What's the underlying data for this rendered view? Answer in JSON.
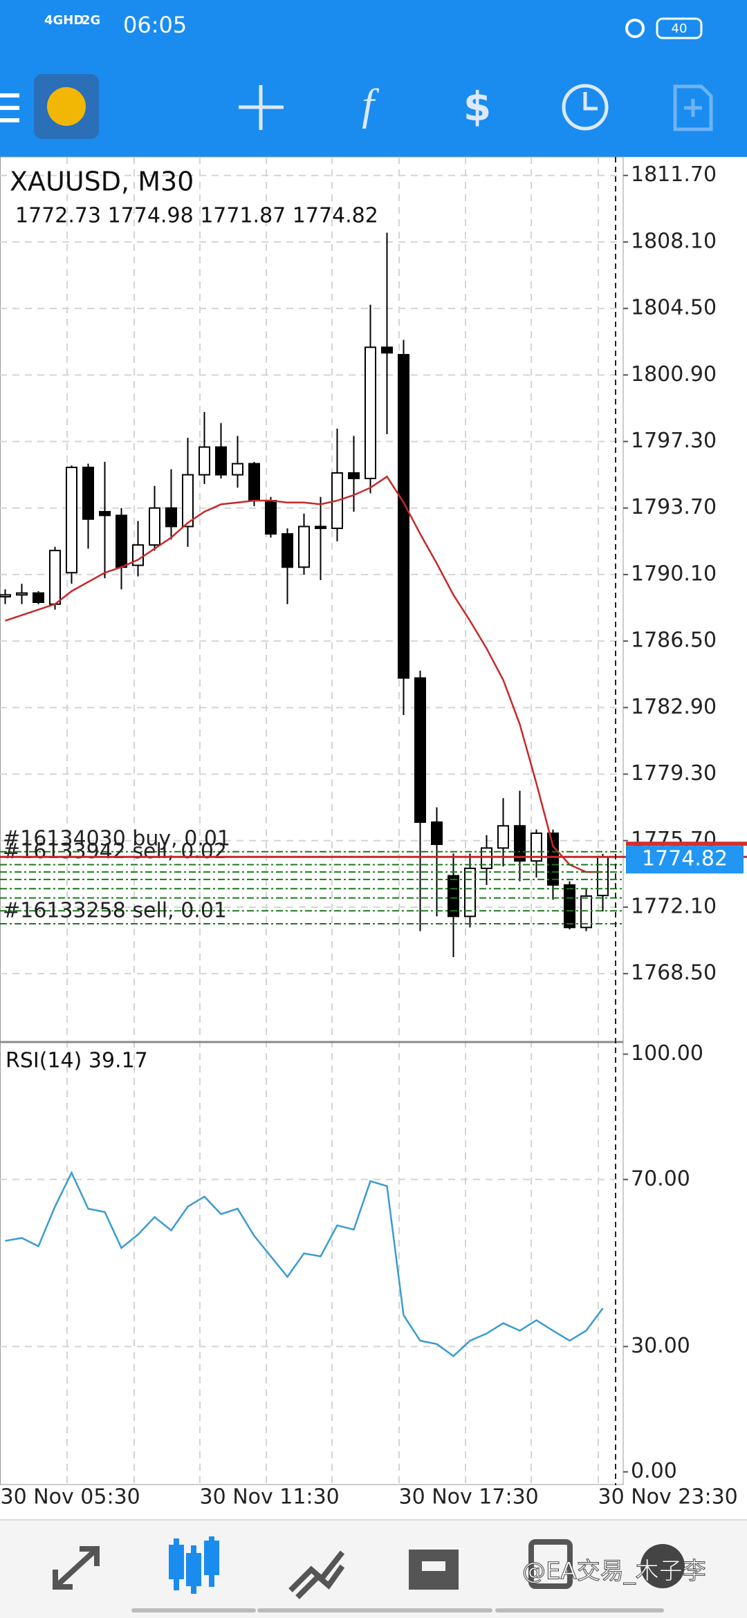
{
  "status_bar": {
    "network1": "4GHD",
    "network2": "2G",
    "time": "06:05",
    "battery": "40"
  },
  "watermark": "@EA交易_木子李",
  "chart_data": [
    {
      "type": "candlestick",
      "title": "XAUUSD, M30",
      "subtitle": "1772.73 1774.98 1771.87 1774.82",
      "categories": [
        "30 Nov 05:30",
        null,
        null,
        null,
        null,
        null,
        null,
        null,
        null,
        null,
        null,
        null,
        "30 Nov 11:30",
        null,
        null,
        null,
        null,
        null,
        null,
        null,
        null,
        null,
        null,
        null,
        "30 Nov 17:30",
        null,
        null,
        null,
        null,
        null,
        null,
        null,
        null,
        null,
        null,
        null,
        "30 Nov 23:30"
      ],
      "open": [
        1788.9,
        1789.0,
        1789.1,
        1788.5,
        1790.2,
        1795.9,
        1793.5,
        1793.3,
        1790.6,
        1791.7,
        1793.7,
        1792.7,
        1795.5,
        1797.0,
        1795.5,
        1796.1,
        1794.1,
        1792.3,
        1790.5,
        1792.7,
        1792.6,
        1795.6,
        1795.3,
        1802.4,
        1802.0,
        1784.5,
        1776.7,
        1773.8,
        1771.6,
        1774.2,
        1775.3,
        1776.5,
        1774.6,
        1776.1,
        1773.3,
        1771.0,
        1772.73
      ],
      "high": [
        1789.3,
        1789.6,
        1789.2,
        1791.6,
        1796.0,
        1796.1,
        1796.2,
        1793.7,
        1793.0,
        1794.9,
        1795.8,
        1797.5,
        1798.9,
        1798.3,
        1797.6,
        1796.2,
        1794.3,
        1792.6,
        1793.4,
        1794.3,
        1798.0,
        1797.6,
        1804.7,
        1808.6,
        1802.8,
        1784.9,
        1777.5,
        1775.0,
        1775.0,
        1776.0,
        1778.0,
        1778.4,
        1776.3,
        1776.3,
        1773.5,
        1773.1,
        1774.98
      ],
      "low": [
        1788.5,
        1788.5,
        1788.5,
        1788.2,
        1789.6,
        1791.5,
        1789.9,
        1789.3,
        1790.0,
        1791.4,
        1792.0,
        1791.6,
        1795.0,
        1795.3,
        1794.8,
        1793.8,
        1792.1,
        1788.5,
        1790.1,
        1789.8,
        1791.9,
        1793.5,
        1794.5,
        1797.7,
        1782.5,
        1770.8,
        1771.6,
        1769.4,
        1771.0,
        1773.3,
        1774.3,
        1773.5,
        1773.7,
        1772.5,
        1770.9,
        1770.8,
        1771.87
      ],
      "close": [
        1789.0,
        1789.1,
        1788.6,
        1791.4,
        1795.9,
        1793.1,
        1793.3,
        1790.5,
        1791.7,
        1793.7,
        1792.7,
        1795.5,
        1797.0,
        1795.5,
        1796.1,
        1794.1,
        1792.3,
        1790.5,
        1792.7,
        1792.6,
        1795.6,
        1795.3,
        1802.4,
        1802.1,
        1784.5,
        1776.7,
        1775.5,
        1771.6,
        1774.2,
        1775.3,
        1776.5,
        1774.6,
        1776.1,
        1773.3,
        1771.0,
        1772.7,
        1774.82
      ],
      "series": [
        {
          "color": "#c62828",
          "values": [
            1787.6,
            1787.9,
            1788.2,
            1788.5,
            1789.2,
            1789.7,
            1790.2,
            1790.5,
            1790.9,
            1791.5,
            1792.1,
            1792.9,
            1793.5,
            1793.9,
            1794.0,
            1794.1,
            1794.1,
            1794.0,
            1794.0,
            1793.9,
            1794.1,
            1794.4,
            1794.8,
            1795.4,
            1794.0,
            1792.3,
            1790.7,
            1789.0,
            1787.6,
            1786.1,
            1784.4,
            1782.0,
            1778.8,
            1775.4,
            1774.4,
            1774.0,
            1774.0
          ]
        }
      ],
      "current_price": {
        "value": 1774.82,
        "label": "1774.82"
      },
      "orders": [
        {
          "label": "#16134030 buy, 0.01",
          "price": 1775.1
        },
        {
          "label": "#16133942 sell, 0.02",
          "price": 1774.4
        },
        {
          "label": null,
          "price": 1774.0
        },
        {
          "label": null,
          "price": 1773.6
        },
        {
          "label": null,
          "price": 1773.1
        },
        {
          "label": null,
          "price": 1772.6
        },
        {
          "label": null,
          "price": 1771.9
        },
        {
          "label": "#16133258 sell, 0.01",
          "price": 1771.2
        }
      ],
      "ylim": [
        1764.8,
        1812.7
      ],
      "yticks": [
        {
          "value": 1811.7,
          "label": "1811.70"
        },
        {
          "value": 1808.1,
          "label": "1808.10"
        },
        {
          "value": 1804.5,
          "label": "1804.50"
        },
        {
          "value": 1800.9,
          "label": "1800.90"
        },
        {
          "value": 1797.3,
          "label": "1797.30"
        },
        {
          "value": 1793.7,
          "label": "1793.70"
        },
        {
          "value": 1790.1,
          "label": "1790.10"
        },
        {
          "value": 1786.5,
          "label": "1786.50"
        },
        {
          "value": 1782.9,
          "label": "1782.90"
        },
        {
          "value": 1779.3,
          "label": "1779.30"
        },
        {
          "value": 1775.7,
          "label": "1775.70"
        },
        {
          "value": 1772.1,
          "label": "1772.10"
        },
        {
          "value": 1768.5,
          "label": "1768.50"
        }
      ],
      "grid": true
    },
    {
      "type": "line",
      "title": "RSI(14) 39.17",
      "series": [
        {
          "color": "#3a9bd0",
          "values": [
            55.3,
            56.0,
            54.0,
            63.5,
            71.6,
            63.0,
            62.2,
            53.6,
            56.8,
            61.0,
            57.8,
            63.5,
            65.9,
            61.7,
            63.0,
            56.5,
            51.6,
            46.7,
            52.3,
            51.6,
            59.0,
            58.0,
            69.6,
            68.4,
            37.5,
            31.4,
            30.6,
            27.7,
            31.4,
            33.1,
            35.6,
            33.8,
            36.3,
            33.8,
            31.4,
            33.8,
            39.17
          ]
        }
      ],
      "ylim": [
        -3.2,
        102.9
      ],
      "yticks": [
        {
          "value": 100,
          "label": "100.00"
        },
        {
          "value": 70,
          "label": "70.00"
        },
        {
          "value": 30,
          "label": "30.00"
        },
        {
          "value": 0,
          "label": "0.00"
        }
      ],
      "grid_levels": [
        70,
        30
      ]
    }
  ]
}
